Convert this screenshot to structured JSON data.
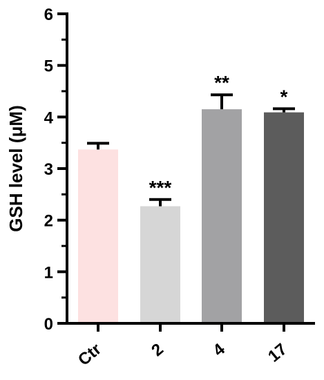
{
  "chart_data": {
    "type": "bar",
    "title": "",
    "xlabel": "",
    "ylabel": "GSH level (μM)",
    "ylim": [
      0,
      6
    ],
    "yticks": [
      0,
      1,
      2,
      3,
      4,
      5,
      6
    ],
    "y_minor_ticks": true,
    "grid": false,
    "legend": "none",
    "categories": [
      "Ctr",
      "2",
      "4",
      "17"
    ],
    "values": [
      3.37,
      2.27,
      4.15,
      4.09
    ],
    "errors": [
      0.12,
      0.13,
      0.28,
      0.07
    ],
    "significance": [
      "",
      "***",
      "**",
      "*"
    ],
    "colors": [
      "#fde1e1",
      "#d6d6d6",
      "#a2a2a4",
      "#5c5c5c"
    ]
  }
}
